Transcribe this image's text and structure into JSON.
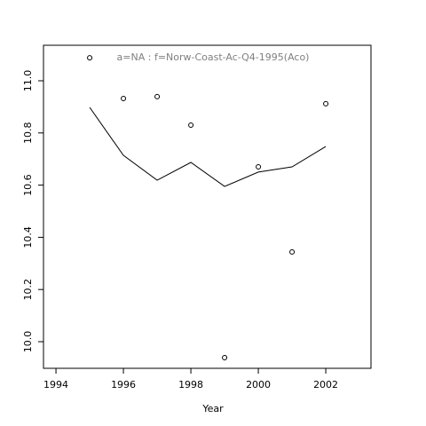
{
  "chart_data": {
    "type": "line",
    "title": "a=NA  :  f=Norw-Coast-Ac-Q4-1995(Aco)",
    "x_label": "Year",
    "x": [
      1995,
      1996,
      1997,
      1998,
      1999,
      2000,
      2001,
      2002
    ],
    "series": [
      {
        "style": "points",
        "color": "#000000",
        "values": [
          11.088,
          10.932,
          10.939,
          10.83,
          9.939,
          10.67,
          10.344,
          10.912
        ]
      },
      {
        "style": "line",
        "color": "#000000",
        "values": [
          10.898,
          10.714,
          10.619,
          10.687,
          10.595,
          10.65,
          10.67,
          10.748
        ]
      }
    ],
    "xlim": [
      1993.63,
      2003.34
    ],
    "xticks": [
      1994,
      1996,
      1998,
      2000,
      2002
    ],
    "ylim": [
      9.898,
      11.136
    ],
    "yticks": [
      {
        "value": 10,
        "label": "10.0"
      },
      10.2,
      10.4,
      10.6,
      10.8,
      {
        "value": 11,
        "label": "11.0"
      }
    ],
    "title_color": "#808080"
  }
}
